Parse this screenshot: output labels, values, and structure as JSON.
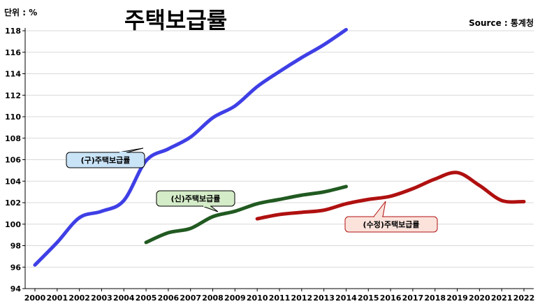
{
  "chart_data": {
    "type": "line",
    "title": "주택보급률",
    "unit_label": "단위 : %",
    "source": "Source :  통계청",
    "x": [
      2000,
      2001,
      2002,
      2003,
      2004,
      2005,
      2006,
      2007,
      2008,
      2009,
      2010,
      2011,
      2012,
      2013,
      2014,
      2015,
      2016,
      2017,
      2018,
      2019,
      2020,
      2021,
      2022
    ],
    "x_tick_labels": [
      "2000",
      "2001",
      "2002",
      "2003",
      "2004",
      "2005",
      "2006",
      "2007",
      "2008",
      "2009",
      "2010",
      "2011",
      "2012",
      "2013",
      "2014",
      "2015",
      "2016",
      "2017",
      "2018",
      "2019",
      "2020",
      "2021",
      "2022"
    ],
    "ylim": [
      94,
      118
    ],
    "y_ticks": [
      94,
      96,
      98,
      100,
      102,
      104,
      106,
      108,
      110,
      112,
      114,
      116,
      118
    ],
    "grid": true,
    "series": [
      {
        "name": "(구)주택보급률",
        "color": "#3f3fe6",
        "x": [
          2000,
          2001,
          2002,
          2003,
          2004,
          2005,
          2006,
          2007,
          2008,
          2009,
          2010,
          2011,
          2012,
          2013,
          2014
        ],
        "values": [
          96.2,
          98.3,
          100.6,
          101.2,
          102.2,
          105.9,
          107.0,
          108.1,
          109.9,
          111.0,
          112.8,
          114.2,
          115.5,
          116.7,
          118.1
        ]
      },
      {
        "name": "(신)주택보급률",
        "color": "#215a21",
        "x": [
          2005,
          2006,
          2007,
          2008,
          2009,
          2010,
          2011,
          2012,
          2013,
          2014
        ],
        "values": [
          98.3,
          99.2,
          99.6,
          100.7,
          101.2,
          101.9,
          102.3,
          102.7,
          103.0,
          103.5
        ]
      },
      {
        "name": "(수정)주택보급률",
        "color": "#b01010",
        "x": [
          2010,
          2011,
          2012,
          2013,
          2014,
          2015,
          2016,
          2017,
          2018,
          2019,
          2020,
          2021,
          2022
        ],
        "values": [
          100.5,
          100.9,
          101.1,
          101.3,
          101.9,
          102.3,
          102.6,
          103.3,
          104.2,
          104.8,
          103.6,
          102.2,
          102.1
        ]
      }
    ]
  },
  "colors": {
    "callout_blue_fill": "#c9e3f7",
    "callout_green_fill": "#d4ecc8",
    "callout_red_fill": "#fbe3dc",
    "grid": "#d9d9d9"
  }
}
